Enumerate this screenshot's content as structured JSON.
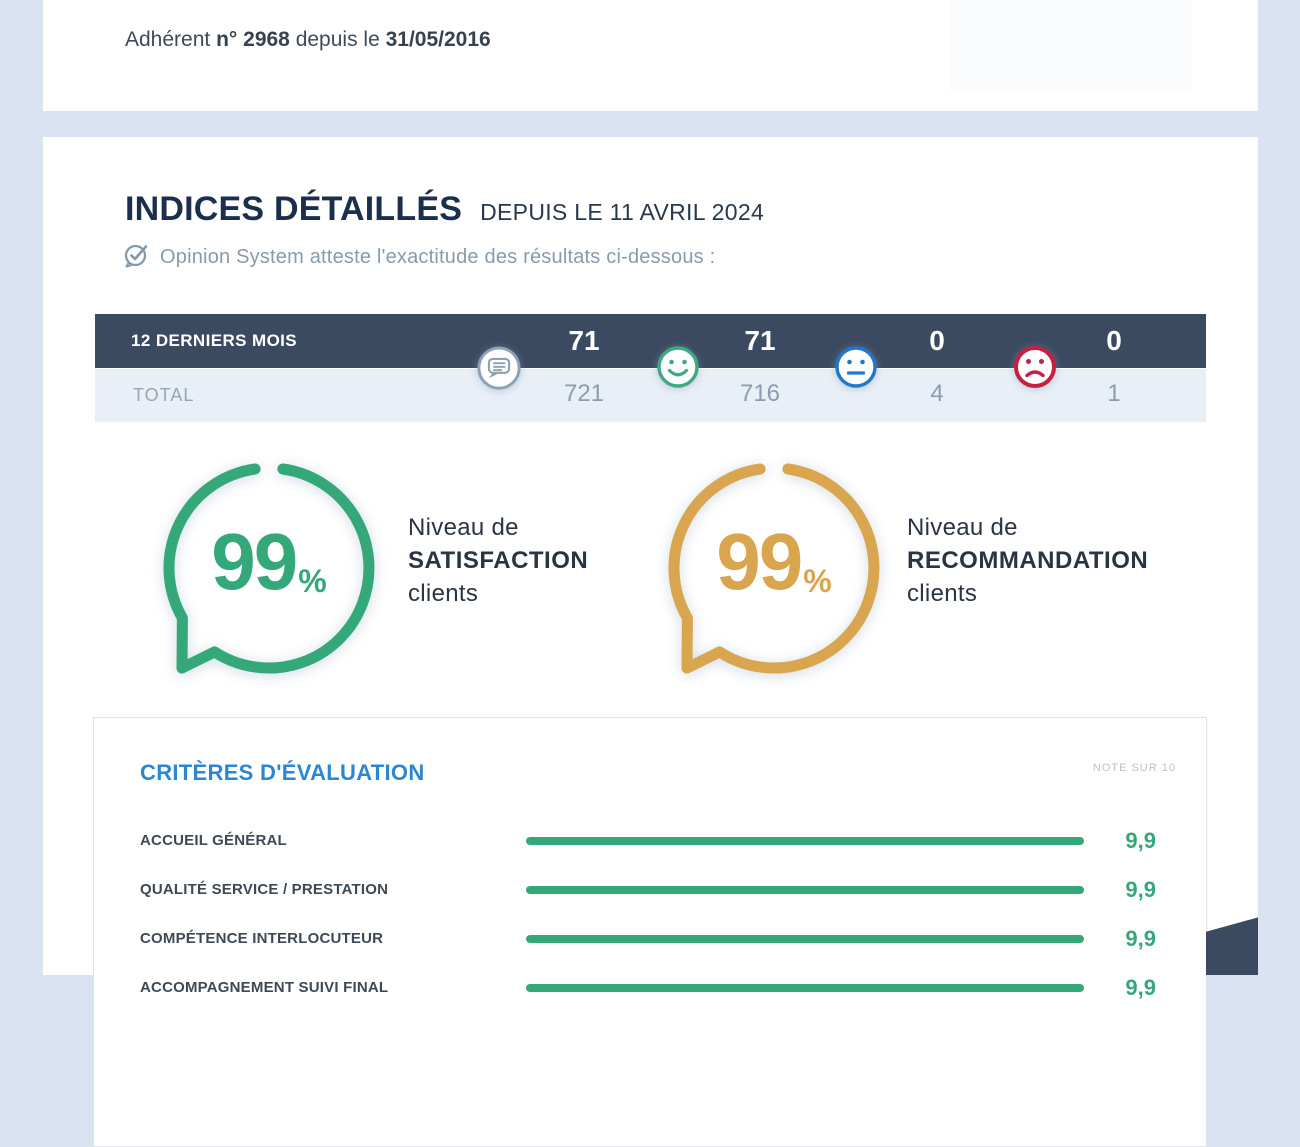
{
  "member_card": {
    "prefix": "Adhérent ",
    "member_no": "n° 2968",
    "infix": " depuis le ",
    "date": "31/05/2016"
  },
  "header": {
    "title": "INDICES DÉTAILLÉS",
    "period": "DEPUIS LE 11 AVRIL 2024",
    "attestation": "Opinion System atteste l'exactitude des résultats ci-dessous :"
  },
  "stats_table": {
    "recent_label": "12 DERNIERS MOIS",
    "total_label": "TOTAL",
    "columns": [
      {
        "icon": "comment-bubble-icon",
        "recent": "71",
        "total": "721"
      },
      {
        "icon": "happy-face-icon",
        "recent": "71",
        "total": "716"
      },
      {
        "icon": "neutral-face-icon",
        "recent": "0",
        "total": "4"
      },
      {
        "icon": "sad-face-icon",
        "recent": "0",
        "total": "1"
      }
    ]
  },
  "gauges": [
    {
      "value": "99",
      "unit": "%",
      "intro": "Niveau de",
      "metric": "SATISFACTION",
      "suffix": "clients",
      "color": "#35A87A"
    },
    {
      "value": "99",
      "unit": "%",
      "intro": "Niveau de",
      "metric": "RECOMMANDATION",
      "suffix": "clients",
      "color": "#D9A54E"
    }
  ],
  "criteria": {
    "title": "CRITÈRES D'ÉVALUATION",
    "scale_note": "NOTE SUR 10",
    "rows": [
      {
        "label": "ACCUEIL GÉNÉRAL",
        "score": "9,9",
        "bar_pct": 99
      },
      {
        "label": "QUALITÉ SERVICE / PRESTATION",
        "score": "9,9",
        "bar_pct": 99
      },
      {
        "label": "COMPÉTENCE INTERLOCUTEUR",
        "score": "9,9",
        "bar_pct": 99
      },
      {
        "label": "ACCOMPAGNEMENT SUIVI FINAL",
        "score": "9,9",
        "bar_pct": 99
      }
    ]
  },
  "colors": {
    "background": "#D9E3F2",
    "card": "#FFFFFF",
    "navy_title": "#1C2E4D",
    "table_dark_row": "#3B4A60",
    "table_light_row": "#E9EFF7",
    "muted_gray": "#8D9BAD",
    "green": "#35A87A",
    "gold": "#D9A54E",
    "blue_heading": "#2D86D1",
    "neutral_blue": "#2277C8",
    "negative_red": "#C51F41",
    "icon_gray_blue": "#8BA1B6",
    "ribbon_navy": "#3B4A60"
  }
}
